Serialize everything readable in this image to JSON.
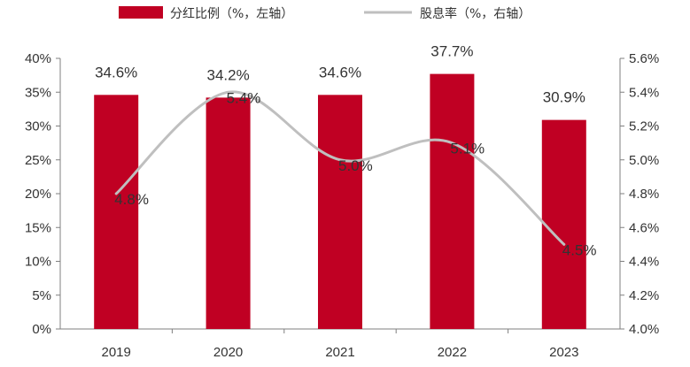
{
  "chart_data": {
    "type": "bar",
    "categories": [
      "2019",
      "2020",
      "2021",
      "2022",
      "2023"
    ],
    "series": [
      {
        "name": "分红比例（%，左轴）",
        "type": "bar",
        "axis": "left",
        "color": "#c00023",
        "values": [
          34.6,
          34.2,
          34.6,
          37.7,
          30.9
        ],
        "labels": [
          "34.6%",
          "34.2%",
          "34.6%",
          "37.7%",
          "30.9%"
        ]
      },
      {
        "name": "股息率（%，右轴）",
        "type": "line",
        "axis": "right",
        "color": "#bfbfbf",
        "values": [
          4.8,
          5.4,
          5.0,
          5.1,
          4.5
        ],
        "labels": [
          "4.8%",
          "5.4%",
          "5.0%",
          "5.1%",
          "4.5%"
        ]
      }
    ],
    "y_left": {
      "lim": [
        0,
        40
      ],
      "ticks": [
        "0%",
        "5%",
        "10%",
        "15%",
        "20%",
        "25%",
        "30%",
        "35%",
        "40%"
      ]
    },
    "y_right": {
      "lim": [
        4.0,
        5.6
      ],
      "ticks": [
        "4.0%",
        "4.2%",
        "4.4%",
        "4.6%",
        "4.8%",
        "5.0%",
        "5.2%",
        "5.4%",
        "5.6%"
      ]
    },
    "legend_position": "top",
    "grid": false
  }
}
